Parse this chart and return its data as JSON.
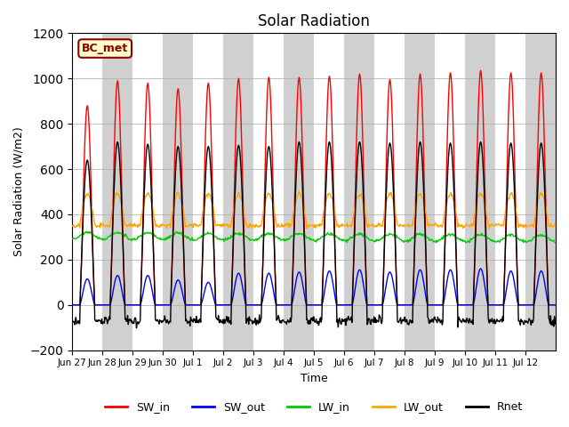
{
  "title": "Solar Radiation",
  "xlabel": "Time",
  "ylabel": "Solar Radiation (W/m2)",
  "ylim": [
    -200,
    1200
  ],
  "yticks": [
    -200,
    0,
    200,
    400,
    600,
    800,
    1000,
    1200
  ],
  "background_color": "#ffffff",
  "plot_bg_color": "#e8e8e8",
  "annotation_label": "BC_met",
  "annotation_facecolor": "#ffffcc",
  "annotation_edgecolor": "#8b0000",
  "legend_entries": [
    "SW_in",
    "SW_out",
    "LW_in",
    "LW_out",
    "Rnet"
  ],
  "line_colors": {
    "SW_in": "#ff0000",
    "SW_out": "#0000ff",
    "LW_in": "#00cc00",
    "LW_out": "#ffa500",
    "Rnet": "#000000"
  },
  "n_days": 16,
  "x_tick_labels": [
    "Jun 27",
    "Jun 28",
    "Jun 29",
    "Jun 30",
    "Jul 1",
    "Jul 2",
    "Jul 3",
    "Jul 4",
    "Jul 5",
    "Jul 6",
    "Jul 7",
    "Jul 8",
    "Jul 9",
    "Jul 10",
    "Jul 11",
    "Jul 12"
  ],
  "SW_in_peaks": [
    880,
    990,
    980,
    955,
    980,
    1000,
    1005,
    1005,
    1010,
    1020,
    995,
    1020,
    1025,
    1035,
    1025,
    1025
  ],
  "SW_out_peaks": [
    115,
    130,
    130,
    110,
    100,
    140,
    140,
    145,
    150,
    155,
    145,
    155,
    155,
    160,
    150,
    150
  ],
  "LW_in_base": 305,
  "LW_out_base": 350,
  "Rnet_peaks": [
    640,
    720,
    710,
    700,
    700,
    705,
    700,
    720,
    720,
    720,
    715,
    720,
    715,
    720,
    715,
    715
  ]
}
